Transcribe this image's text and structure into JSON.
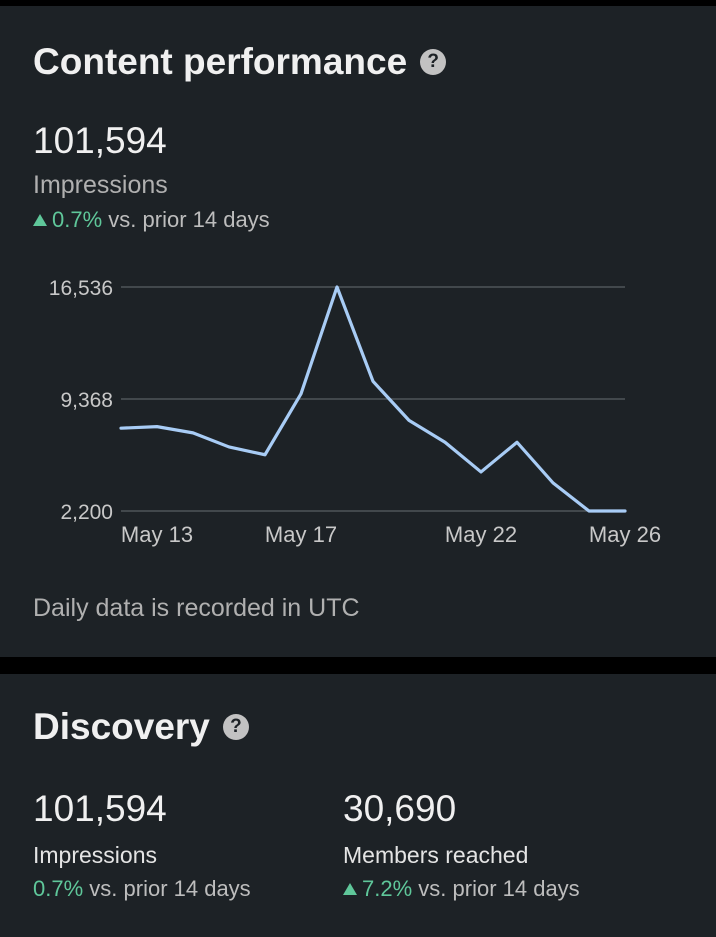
{
  "content_performance": {
    "title": "Content performance",
    "help_icon": "?",
    "impressions_value": "101,594",
    "impressions_label": "Impressions",
    "delta_value": "0.7%",
    "delta_text": "vs. prior 14 days",
    "delta_direction": "up",
    "footnote": "Daily data is recorded in UTC"
  },
  "chart_data": {
    "type": "line",
    "ytick_labels": [
      "16,536",
      "9,368",
      "2,200"
    ],
    "yticks": [
      16536,
      9368,
      2200
    ],
    "ylim": [
      2200,
      16536
    ],
    "xtick_labels": [
      "May 13",
      "May 17",
      "May 22",
      "May 26"
    ],
    "xtick_days": [
      13,
      17,
      22,
      26
    ],
    "grid": true,
    "series": [
      {
        "color": "#a8ccf5",
        "x": [
          12,
          13,
          14,
          15,
          16,
          17,
          18,
          19,
          20,
          21,
          22,
          23,
          24,
          25,
          26
        ],
        "values": [
          7500,
          7600,
          7200,
          6300,
          5800,
          9700,
          16536,
          10500,
          8000,
          6600,
          4700,
          6600,
          4000,
          2200,
          2200
        ]
      }
    ]
  },
  "discovery": {
    "title": "Discovery",
    "help_icon": "?",
    "impressions_value": "101,594",
    "impressions_label": "Impressions",
    "impressions_delta_value": "0.7%",
    "impressions_delta_text": "vs. prior 14 days",
    "members_value": "30,690",
    "members_label": "Members reached",
    "members_delta_value": "7.2%",
    "members_delta_text": "vs. prior 14 days",
    "members_delta_direction": "up"
  },
  "colors": {
    "background": "#000000",
    "card": "#1d2226",
    "positive": "#5fc79a",
    "line": "#a8ccf5",
    "gridline": "#5a5f63"
  }
}
